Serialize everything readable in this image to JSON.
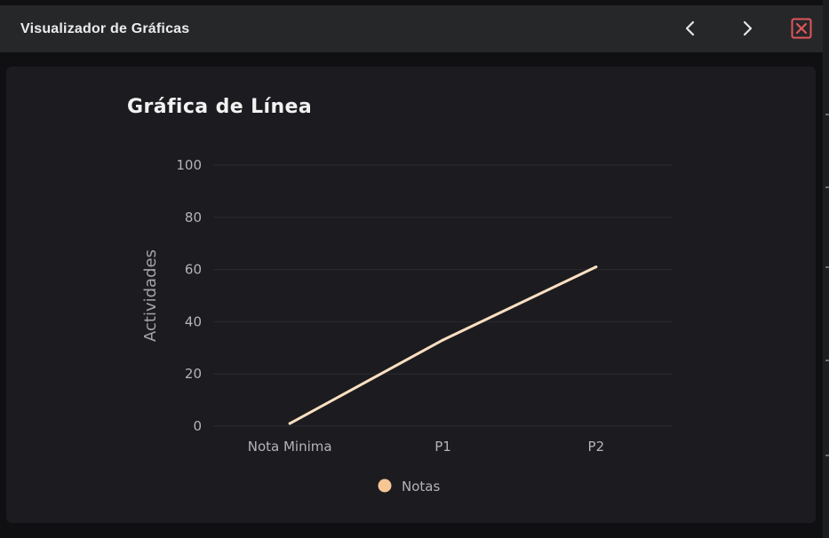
{
  "window": {
    "title": "Visualizador de Gráficas",
    "prev_icon": "chevron-left-icon",
    "next_icon": "chevron-right-icon",
    "close_icon": "close-icon"
  },
  "colors": {
    "background": "#1c1c20",
    "titlebar": "#262729",
    "series": "#fce0c2",
    "legend_marker": "#f6c694",
    "close_accent": "#e0565b"
  },
  "chart_data": {
    "type": "line",
    "title": "Gráfica de Línea",
    "xlabel": "",
    "ylabel": "Actividades",
    "categories": [
      "Nota Minima",
      "P1",
      "P2"
    ],
    "series": [
      {
        "name": "Notas",
        "values": [
          1,
          33,
          61
        ]
      }
    ],
    "ylim": [
      0,
      100
    ],
    "yticks": [
      0,
      20,
      40,
      60,
      80,
      100
    ],
    "grid": true,
    "legend_position": "bottom"
  }
}
